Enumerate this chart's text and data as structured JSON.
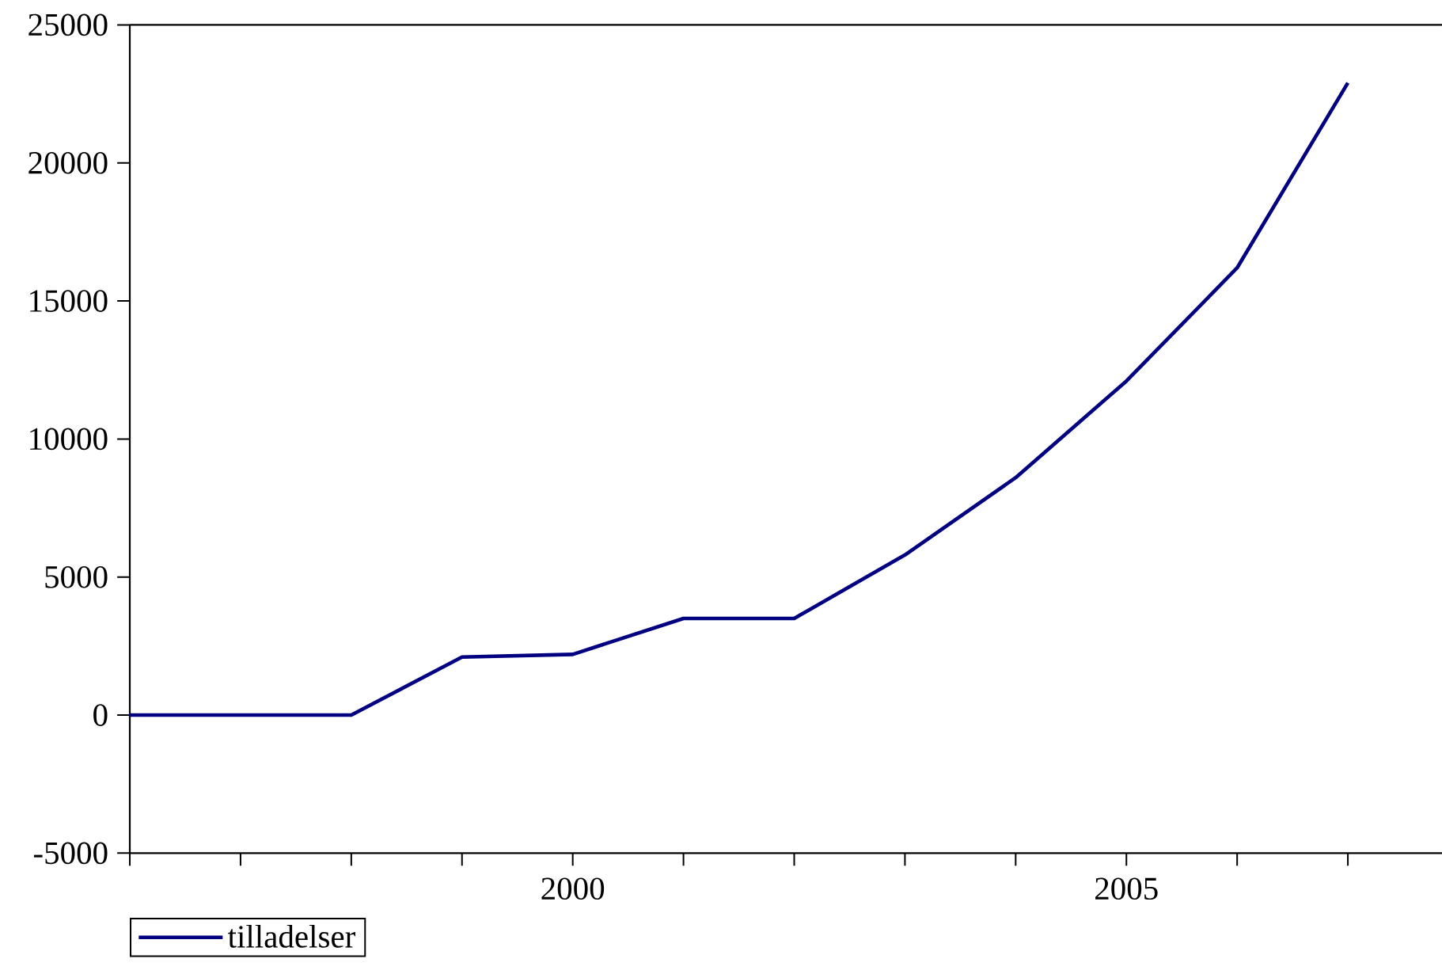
{
  "chart_data": {
    "type": "line",
    "x": [
      1996,
      1997,
      1998,
      1999,
      2000,
      2001,
      2002,
      2003,
      2004,
      2005,
      2006,
      2007
    ],
    "series": [
      {
        "name": "tilladelser",
        "color": "#000080",
        "values": [
          0,
          0,
          0,
          2100,
          2200,
          3500,
          3500,
          5800,
          8600,
          12100,
          16200,
          22900
        ]
      }
    ],
    "xlim": [
      1996,
      2007.85
    ],
    "xticks": [
      {
        "value": 1996,
        "label": null
      },
      {
        "value": 1997,
        "label": null
      },
      {
        "value": 1998,
        "label": null
      },
      {
        "value": 1999,
        "label": null
      },
      2000,
      {
        "value": 2001,
        "label": null
      },
      {
        "value": 2002,
        "label": null
      },
      {
        "value": 2003,
        "label": null
      },
      {
        "value": 2004,
        "label": null
      },
      2005,
      {
        "value": 2006,
        "label": null
      },
      {
        "value": 2007,
        "label": null
      }
    ],
    "ylim": [
      -5000,
      25000
    ],
    "yticks": [
      -5000,
      0,
      5000,
      10000,
      15000,
      20000,
      25000
    ],
    "legend": "bottom left"
  }
}
